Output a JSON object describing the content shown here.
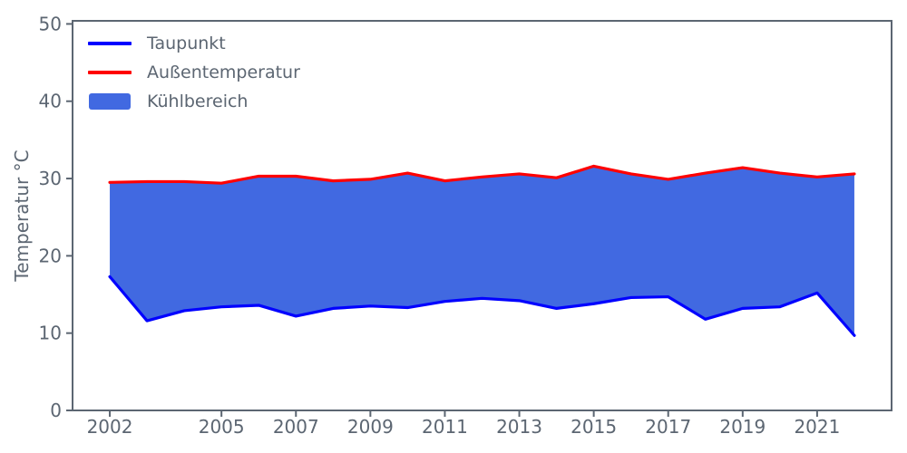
{
  "chart_data": {
    "type": "area",
    "title": "",
    "x": [
      2002,
      2003,
      2004,
      2005,
      2006,
      2007,
      2008,
      2009,
      2010,
      2011,
      2012,
      2013,
      2014,
      2015,
      2016,
      2017,
      2018,
      2019,
      2020,
      2021,
      2022
    ],
    "series": [
      {
        "name": "Taupunkt",
        "color": "#0000ff",
        "values": [
          17.3,
          11.6,
          12.9,
          13.4,
          13.6,
          12.2,
          13.2,
          13.5,
          13.3,
          14.1,
          14.5,
          14.2,
          13.2,
          13.8,
          14.6,
          14.7,
          11.8,
          13.2,
          13.4,
          15.2,
          9.7
        ]
      },
      {
        "name": "Außentemperatur",
        "color": "#ff0000",
        "values": [
          29.5,
          29.6,
          29.6,
          29.4,
          30.3,
          30.3,
          29.7,
          29.9,
          30.7,
          29.7,
          30.2,
          30.6,
          30.1,
          31.6,
          30.6,
          29.9,
          30.7,
          31.4,
          30.7,
          30.2,
          30.6
        ]
      }
    ],
    "fill_between": {
      "name": "Kühlbereich",
      "color": "#4169e1",
      "between": [
        "Taupunkt",
        "Außentemperatur"
      ]
    },
    "xlabel": "",
    "ylabel": "Temperatur °C",
    "xticks": [
      2002,
      2005,
      2007,
      2009,
      2011,
      2013,
      2015,
      2017,
      2019,
      2021
    ],
    "yticks": [
      0,
      10,
      20,
      30,
      40,
      50
    ],
    "xlim": [
      2001,
      2023
    ],
    "ylim": [
      0,
      50.4
    ],
    "grid": false,
    "legend_position": "upper left",
    "axis_color": "#5c6672",
    "background": "#ffffff"
  },
  "legend": {
    "items": [
      {
        "label": "Taupunkt",
        "swatch": "line",
        "color": "#0000ff"
      },
      {
        "label": "Außentemperatur",
        "swatch": "line",
        "color": "#ff0000"
      },
      {
        "label": "Kühlbereich",
        "swatch": "patch",
        "color": "#4169e1"
      }
    ]
  }
}
